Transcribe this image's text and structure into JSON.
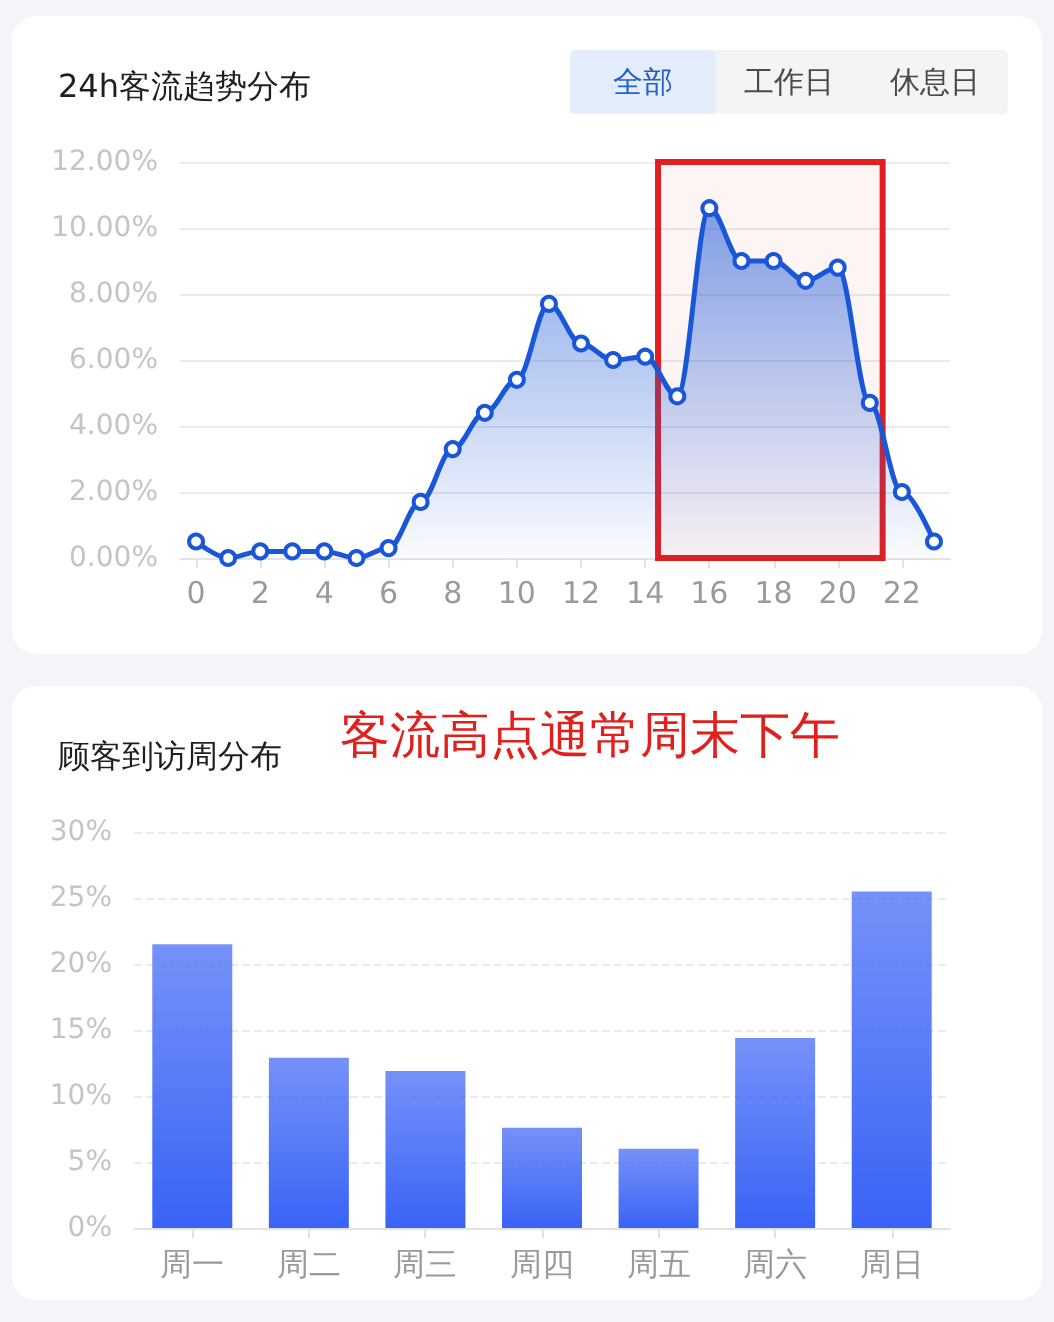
{
  "chart_data": [
    {
      "type": "area",
      "title": "24h客流趋势分布",
      "annotations": [
        "全部",
        "工作日",
        "休息日"
      ],
      "x": [
        0,
        1,
        2,
        3,
        4,
        5,
        6,
        7,
        8,
        9,
        10,
        11,
        12,
        13,
        14,
        15,
        16,
        17,
        18,
        19,
        20,
        21,
        22,
        23
      ],
      "values": [
        0.5,
        0,
        0.2,
        0.2,
        0.2,
        0,
        0.3,
        1.7,
        3.3,
        4.4,
        5.4,
        7.7,
        6.5,
        6.0,
        6.1,
        4.9,
        10.6,
        9.0,
        9.0,
        8.4,
        8.8,
        4.7,
        2.0,
        0.5
      ],
      "color": "#1a56d8",
      "marker": "circle",
      "xlim": [
        -0.5,
        23.5
      ],
      "xticks": [
        0,
        2,
        4,
        6,
        8,
        10,
        12,
        14,
        16,
        18,
        20,
        22
      ],
      "ylim": [
        0,
        12
      ],
      "yticks": [
        {
          "value": 0,
          "label": "0.00%"
        },
        {
          "value": 2,
          "label": "2.00%"
        },
        {
          "value": 4,
          "label": "4.00%"
        },
        {
          "value": 6,
          "label": "6.00%"
        },
        {
          "value": 8,
          "label": "8.00%"
        },
        {
          "value": 10,
          "label": "10.00%"
        },
        {
          "value": 12,
          "label": "12.00%"
        }
      ],
      "grid": "y",
      "bands": [
        {
          "axis": "x",
          "from": 14.4,
          "to": 21.4,
          "color": "#e02020"
        }
      ]
    },
    {
      "type": "bar",
      "title": "顾客到访周分布",
      "annotations": [
        "客流高点通常周末下午"
      ],
      "categories": [
        "周一",
        "周二",
        "周三",
        "周四",
        "周五",
        "周六",
        "周日"
      ],
      "values": [
        21.5,
        12.9,
        11.9,
        7.6,
        6.0,
        14.4,
        25.5
      ],
      "color": "#3a63f6",
      "ylim": [
        0,
        30
      ],
      "yticks": [
        {
          "value": 0,
          "label": "0%"
        },
        {
          "value": 5,
          "label": "5%"
        },
        {
          "value": 10,
          "label": "10%"
        },
        {
          "value": 15,
          "label": "15%"
        },
        {
          "value": 20,
          "label": "20%"
        },
        {
          "value": 25,
          "label": "25%"
        },
        {
          "value": 30,
          "label": "30%"
        }
      ],
      "grid": "y"
    }
  ]
}
